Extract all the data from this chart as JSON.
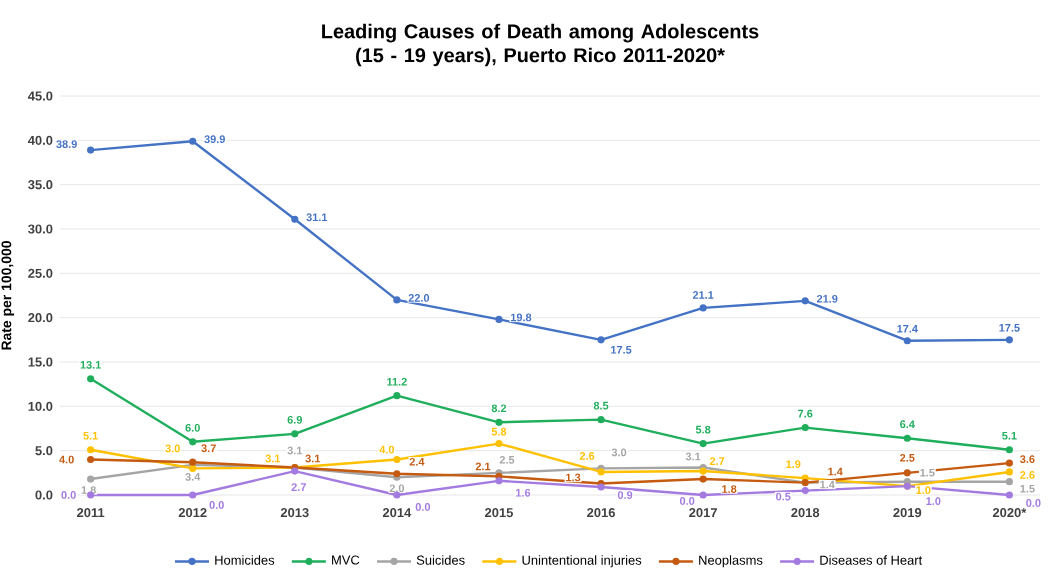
{
  "chart_data": {
    "type": "line",
    "title": "Leading Causes of Death among Adolescents (15 - 19 years), Puerto Rico 2011-2020*",
    "ylabel": "Rate per 100,000",
    "categories": [
      "2011",
      "2012",
      "2013",
      "2014",
      "2015",
      "2016",
      "2017",
      "2018",
      "2019",
      "2020*"
    ],
    "series": [
      {
        "name": "Homicides",
        "color": "#4472c4",
        "values": [
          38.9,
          39.9,
          31.1,
          22.0,
          19.8,
          17.5,
          21.1,
          21.9,
          17.4,
          17.5
        ],
        "value_labels": [
          "38.9",
          "39.9",
          "31.1",
          "22.0",
          "19.8",
          "17.5",
          "21.1",
          "21.9",
          "17.4",
          "17.5"
        ]
      },
      {
        "name": "MVC",
        "color": "#1fae5b",
        "values": [
          13.1,
          6.0,
          6.9,
          11.2,
          8.2,
          8.5,
          5.8,
          7.6,
          6.4,
          5.1
        ],
        "value_labels": [
          "13.1",
          "6.0",
          "6.9",
          "11.2",
          "8.2",
          "8.5",
          "5.8",
          "7.6",
          "6.4",
          "5.1"
        ]
      },
      {
        "name": "Suicides",
        "color": "#a5a5a5",
        "values": [
          1.8,
          3.4,
          3.1,
          2.0,
          2.5,
          3.0,
          3.1,
          1.4,
          1.5,
          1.5
        ],
        "value_labels": [
          "1.8",
          "3.4",
          "3.1",
          "2.0",
          "2.5",
          "3.0",
          "3.1",
          "1.4",
          "1.5",
          "1.5"
        ]
      },
      {
        "name": "Unintentional injuries",
        "color": "#ffc000",
        "values": [
          5.1,
          3.0,
          3.1,
          4.0,
          5.8,
          2.6,
          2.7,
          1.9,
          1.0,
          2.6
        ],
        "value_labels": [
          "5.1",
          "3.0",
          "3.1",
          "4.0",
          "5.8",
          "2.6",
          "2.7",
          "1.9",
          "1.0",
          "2.6"
        ]
      },
      {
        "name": "Neoplasms",
        "color": "#c55a11",
        "values": [
          4.0,
          3.7,
          3.1,
          2.4,
          2.1,
          1.3,
          1.8,
          1.4,
          2.5,
          3.6
        ],
        "value_labels": [
          "4.0",
          "3.7",
          "3.1",
          "2.4",
          "2.1",
          "1.3",
          "1.8",
          "1.4",
          "2.5",
          "3.6"
        ]
      },
      {
        "name": "Diseases of Heart",
        "color": "#a37ae0",
        "values": [
          0.0,
          0.0,
          2.7,
          0.0,
          1.6,
          0.9,
          0.0,
          0.5,
          1.0,
          0.0
        ],
        "value_labels": [
          "0.0",
          "0.0",
          "2.7",
          "0.0",
          "1.6",
          "0.9",
          "0.0",
          "0.5",
          "1.0",
          "0.0"
        ]
      }
    ],
    "ylim": [
      0,
      45
    ],
    "yticks": [
      {
        "value": 0,
        "label": "0.0"
      },
      {
        "value": 5,
        "label": "5.0"
      },
      {
        "value": 10,
        "label": "10.0"
      },
      {
        "value": 15,
        "label": "15.0"
      },
      {
        "value": 20,
        "label": "20.0"
      },
      {
        "value": 25,
        "label": "25.0"
      },
      {
        "value": 30,
        "label": "30.0"
      },
      {
        "value": 35,
        "label": "35.0"
      },
      {
        "value": 40,
        "label": "40.0"
      },
      {
        "value": 45,
        "label": "45.0"
      }
    ],
    "grid": "y",
    "legend": "bottom",
    "marker": "circle",
    "line_style": "solid"
  }
}
